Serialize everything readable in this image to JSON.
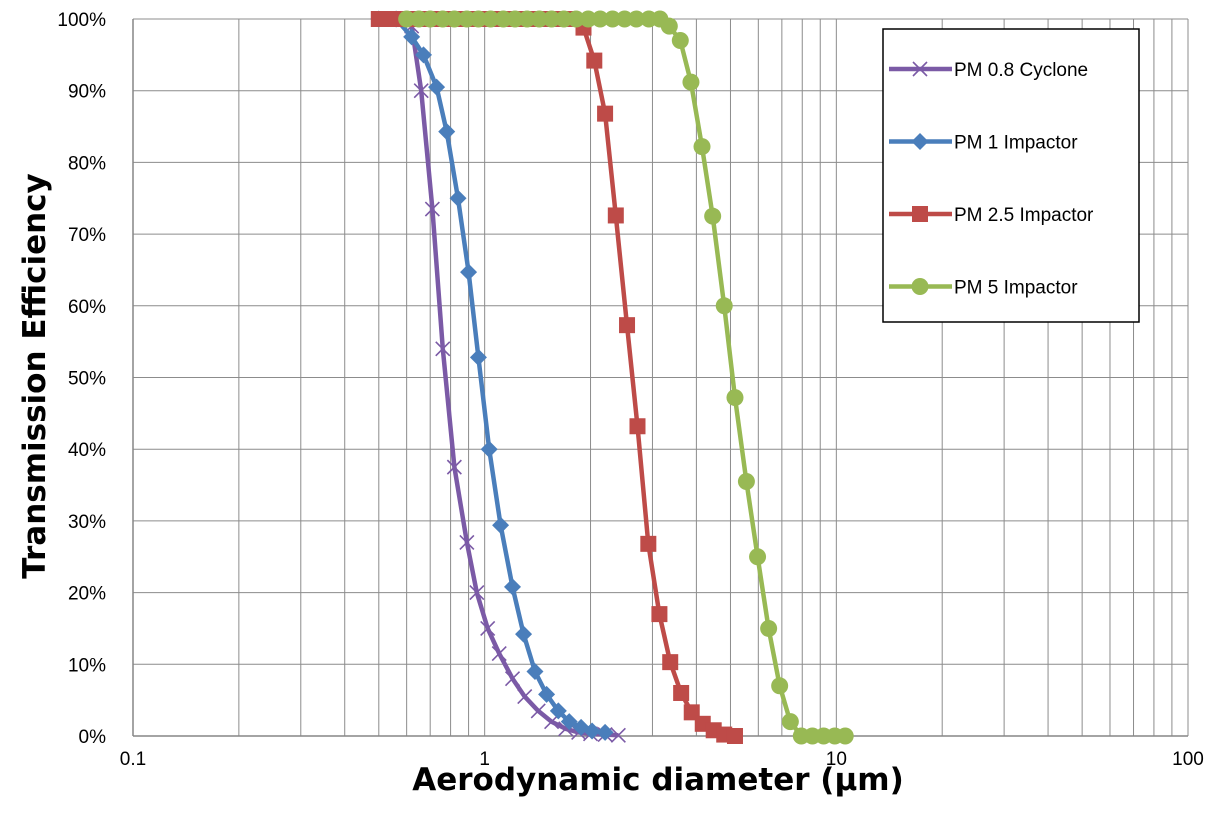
{
  "chart_data": {
    "type": "scatter",
    "title": "",
    "xlabel": "Aerodynamic diameter (µm)",
    "ylabel": "Transmission Efficiency",
    "xscale": "log",
    "xlim": [
      0.1,
      100
    ],
    "ylim": [
      0,
      1
    ],
    "x_tick_labels": [
      "0.1",
      "1",
      "10",
      "100"
    ],
    "y_tick_labels": [
      "0%",
      "10%",
      "20%",
      "30%",
      "40%",
      "50%",
      "60%",
      "70%",
      "80%",
      "90%",
      "100%"
    ],
    "grid": true,
    "minor_grid": true,
    "legend_position": "top-right",
    "series": [
      {
        "name": "PM 0.8 Cyclone",
        "color": "#7b5aa6",
        "marker": "x",
        "points": [
          [
            0.62,
            0.99
          ],
          [
            0.66,
            0.9
          ],
          [
            0.71,
            0.735
          ],
          [
            0.76,
            0.54
          ],
          [
            0.82,
            0.375
          ],
          [
            0.89,
            0.27
          ],
          [
            0.95,
            0.2
          ],
          [
            1.02,
            0.15
          ],
          [
            1.1,
            0.115
          ],
          [
            1.2,
            0.08
          ],
          [
            1.3,
            0.055
          ],
          [
            1.42,
            0.035
          ],
          [
            1.55,
            0.02
          ],
          [
            1.7,
            0.01
          ],
          [
            1.85,
            0.005
          ],
          [
            2.0,
            0.003
          ],
          [
            2.2,
            0.002
          ],
          [
            2.4,
            0.001
          ]
        ]
      },
      {
        "name": "PM 1 Impactor",
        "color": "#4a7ebb",
        "marker": "diamond",
        "points": [
          [
            0.5,
            1.0
          ],
          [
            0.56,
            1.0
          ],
          [
            0.62,
            0.975
          ],
          [
            0.67,
            0.95
          ],
          [
            0.73,
            0.905
          ],
          [
            0.78,
            0.843
          ],
          [
            0.84,
            0.75
          ],
          [
            0.9,
            0.647
          ],
          [
            0.96,
            0.528
          ],
          [
            1.03,
            0.4
          ],
          [
            1.11,
            0.294
          ],
          [
            1.2,
            0.208
          ],
          [
            1.29,
            0.142
          ],
          [
            1.39,
            0.09
          ],
          [
            1.5,
            0.058
          ],
          [
            1.62,
            0.035
          ],
          [
            1.74,
            0.02
          ],
          [
            1.88,
            0.012
          ],
          [
            2.02,
            0.007
          ],
          [
            2.2,
            0.005
          ]
        ]
      },
      {
        "name": "PM 2.5 Impactor",
        "color": "#be4b48",
        "marker": "square",
        "points": [
          [
            0.5,
            1.0
          ],
          [
            0.55,
            1.0
          ],
          [
            0.61,
            1.0
          ],
          [
            0.67,
            1.0
          ],
          [
            0.74,
            1.0
          ],
          [
            0.81,
            1.0
          ],
          [
            0.89,
            1.0
          ],
          [
            0.98,
            1.0
          ],
          [
            1.08,
            1.0
          ],
          [
            1.19,
            1.0
          ],
          [
            1.31,
            1.0
          ],
          [
            1.44,
            1.0
          ],
          [
            1.58,
            1.0
          ],
          [
            1.74,
            1.0
          ],
          [
            1.91,
            0.988
          ],
          [
            2.05,
            0.942
          ],
          [
            2.2,
            0.868
          ],
          [
            2.36,
            0.726
          ],
          [
            2.54,
            0.573
          ],
          [
            2.72,
            0.432
          ],
          [
            2.92,
            0.268
          ],
          [
            3.14,
            0.17
          ],
          [
            3.37,
            0.103
          ],
          [
            3.62,
            0.06
          ],
          [
            3.88,
            0.033
          ],
          [
            4.17,
            0.017
          ],
          [
            4.48,
            0.008
          ],
          [
            4.8,
            0.002
          ],
          [
            5.15,
            0.0
          ]
        ]
      },
      {
        "name": "PM 5 Impactor",
        "color": "#98b954",
        "marker": "circle",
        "points": [
          [
            0.6,
            1.0
          ],
          [
            0.65,
            1.0
          ],
          [
            0.7,
            1.0
          ],
          [
            0.76,
            1.0
          ],
          [
            0.82,
            1.0
          ],
          [
            0.89,
            1.0
          ],
          [
            0.96,
            1.0
          ],
          [
            1.04,
            1.0
          ],
          [
            1.13,
            1.0
          ],
          [
            1.22,
            1.0
          ],
          [
            1.32,
            1.0
          ],
          [
            1.43,
            1.0
          ],
          [
            1.55,
            1.0
          ],
          [
            1.68,
            1.0
          ],
          [
            1.82,
            1.0
          ],
          [
            1.97,
            1.0
          ],
          [
            2.13,
            1.0
          ],
          [
            2.31,
            1.0
          ],
          [
            2.5,
            1.0
          ],
          [
            2.7,
            1.0
          ],
          [
            2.93,
            1.0
          ],
          [
            3.15,
            1.0
          ],
          [
            3.35,
            0.99
          ],
          [
            3.6,
            0.97
          ],
          [
            3.86,
            0.912
          ],
          [
            4.15,
            0.822
          ],
          [
            4.45,
            0.725
          ],
          [
            4.8,
            0.6
          ],
          [
            5.15,
            0.472
          ],
          [
            5.55,
            0.355
          ],
          [
            5.97,
            0.25
          ],
          [
            6.42,
            0.15
          ],
          [
            6.9,
            0.07
          ],
          [
            7.4,
            0.02
          ],
          [
            7.95,
            0.0
          ],
          [
            8.55,
            0.0
          ],
          [
            9.2,
            0.0
          ],
          [
            9.9,
            0.0
          ],
          [
            10.6,
            0.0
          ]
        ]
      }
    ]
  }
}
